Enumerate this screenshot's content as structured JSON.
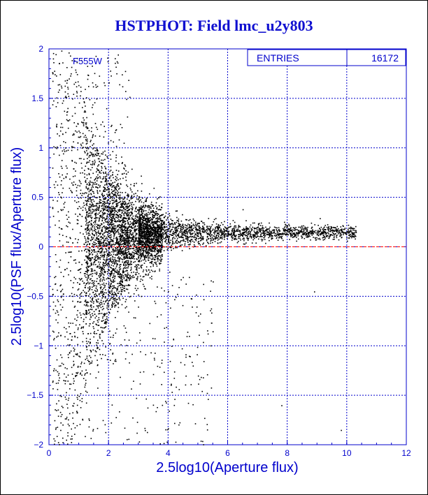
{
  "chart_data": {
    "type": "scatter",
    "title": "HSTPHOT: Field lmc_u2y803",
    "xlabel": "2.5log10(Aperture flux)",
    "ylabel": "2.5log10(PSF flux/Aperture flux)",
    "xlim": [
      0,
      12
    ],
    "ylim": [
      -2,
      2
    ],
    "x_ticks": [
      "0",
      "2",
      "4",
      "6",
      "8",
      "10",
      "12"
    ],
    "y_ticks": [
      "-2",
      "-1.5",
      "-1",
      "-0.5",
      "0",
      "0.5",
      "1",
      "1.5",
      "2"
    ],
    "grid": true,
    "reference_line": {
      "y": 0,
      "color": "#ff0000",
      "style": "dashed"
    },
    "annotation": "F555W",
    "stats_box": {
      "label": "ENTRIES",
      "value": "16172"
    },
    "point_color": "#000000",
    "axis_color": "#0000cc",
    "distribution": {
      "narrow_band_center_y": 0.15,
      "narrow_band_x_range": [
        3,
        10.3
      ],
      "spread_region_x_range": [
        0,
        3.5
      ]
    },
    "outliers": [
      {
        "x": 9.1,
        "y": 0.18
      },
      {
        "x": 9.5,
        "y": 0.17
      },
      {
        "x": 10.3,
        "y": 0.15
      },
      {
        "x": 6.5,
        "y": 0.38
      },
      {
        "x": 8.9,
        "y": -0.45
      },
      {
        "x": 7.8,
        "y": -1.6
      },
      {
        "x": 9.8,
        "y": -1.85
      },
      {
        "x": 5.0,
        "y": -1.3
      },
      {
        "x": 4.7,
        "y": -0.9
      }
    ]
  }
}
